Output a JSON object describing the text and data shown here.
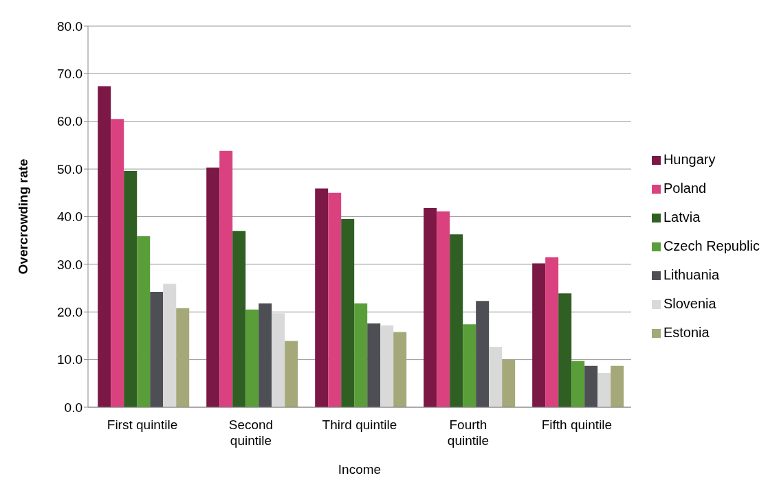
{
  "chart_data": {
    "type": "bar",
    "xlabel": "Income",
    "ylabel": "Overcrowding rate",
    "categories": [
      "First quintile",
      "Second quintile",
      "Third quintile",
      "Fourth quintile",
      "Fifth quintile"
    ],
    "series": [
      {
        "name": "Hungary",
        "color": "#7b1845",
        "values": [
          67.4,
          50.3,
          45.9,
          41.8,
          30.2
        ]
      },
      {
        "name": "Poland",
        "color": "#d9427f",
        "values": [
          60.5,
          53.8,
          45.0,
          41.1,
          31.5
        ]
      },
      {
        "name": "Latvia",
        "color": "#2f5f22",
        "values": [
          49.6,
          37.0,
          39.5,
          36.3,
          23.9
        ]
      },
      {
        "name": "Czech Republic",
        "color": "#5a9e3a",
        "values": [
          35.9,
          20.5,
          21.8,
          17.4,
          9.7
        ]
      },
      {
        "name": "Lithuania",
        "color": "#4d4f55",
        "values": [
          24.2,
          21.8,
          17.6,
          22.3,
          8.7
        ]
      },
      {
        "name": "Slovenia",
        "color": "#d9d9d9",
        "values": [
          25.9,
          19.7,
          17.2,
          12.7,
          7.2
        ]
      },
      {
        "name": "Estonia",
        "color": "#a5a878",
        "values": [
          20.8,
          13.9,
          15.8,
          10.0,
          8.7
        ]
      }
    ],
    "ylim": [
      0,
      80
    ],
    "yticks": [
      {
        "value": 0,
        "label": "0.0"
      },
      {
        "value": 10,
        "label": "10.0"
      },
      {
        "value": 20,
        "label": "20.0"
      },
      {
        "value": 30,
        "label": "30.0"
      },
      {
        "value": 40,
        "label": "40.0"
      },
      {
        "value": 50,
        "label": "50.0"
      },
      {
        "value": 60,
        "label": "60.0"
      },
      {
        "value": 70,
        "label": "70.0"
      },
      {
        "value": 80,
        "label": "80.0"
      }
    ],
    "grid": "y",
    "legend": "right"
  }
}
